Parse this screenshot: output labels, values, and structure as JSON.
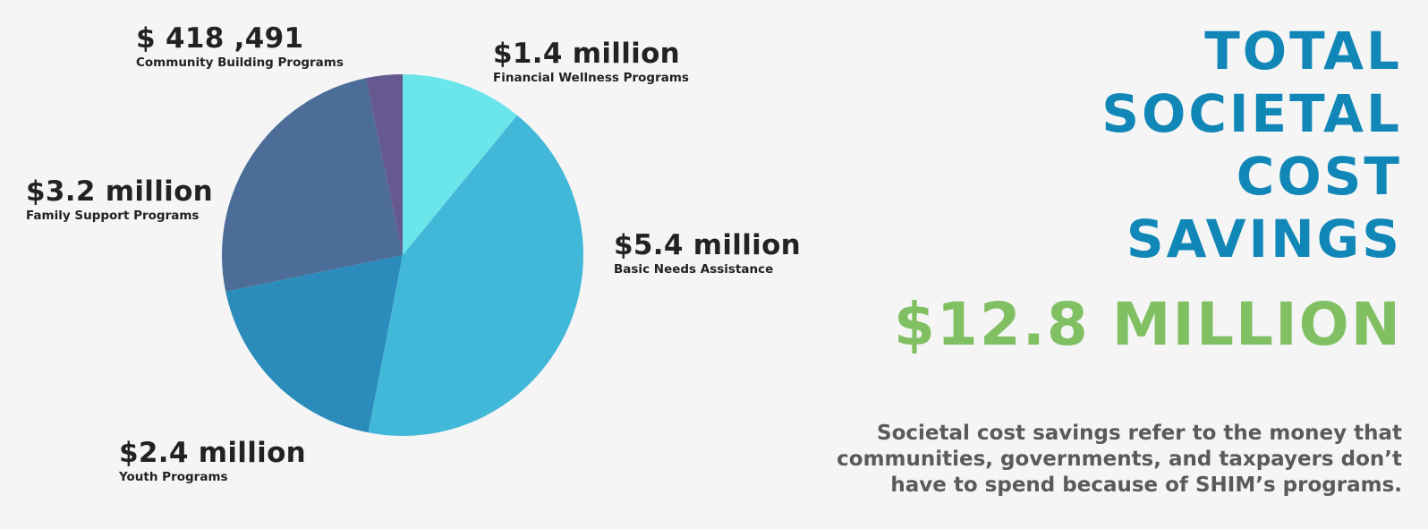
{
  "chart_data": {
    "type": "pie",
    "start": "top",
    "direction": "clockwise",
    "slices": [
      {
        "category": "Financial Wellness Programs",
        "value": 1.4,
        "value_label": "$1.4 million",
        "color": "#6ae5ea"
      },
      {
        "category": "Basic Needs Assistance",
        "value": 5.4,
        "value_label": "$5.4 million",
        "color": "#42b8d9"
      },
      {
        "category": "Youth Programs",
        "value": 2.4,
        "value_label": "$2.4 million",
        "color": "#2b8cbc"
      },
      {
        "category": "Family Support Programs",
        "value": 3.2,
        "value_label": "$3.2 million",
        "color": "#4b6d98"
      },
      {
        "category": "Community Building Programs",
        "value": 0.418491,
        "value_label": "$ 418 ,491",
        "color": "#66598f"
      }
    ]
  },
  "labels": {
    "community": {
      "value": "$ 418 ,491",
      "category": "Community Building Programs"
    },
    "financial": {
      "value": "$1.4 million",
      "category": "Financial Wellness Programs"
    },
    "family": {
      "value": "$3.2 million",
      "category": "Family Support Programs"
    },
    "basic": {
      "value": "$5.4 million",
      "category": "Basic Needs Assistance"
    },
    "youth": {
      "value": "$2.4 million",
      "category": "Youth Programs"
    }
  },
  "title_lines": [
    "TOTAL",
    "SOCIETAL",
    "COST",
    "SAVINGS"
  ],
  "total": "$12.8 MILLION",
  "description_lines": [
    "Societal cost savings refer to the money that",
    "communities, governments, and taxpayers don’t",
    "have to spend because of SHIM’s programs."
  ],
  "colors": {
    "title": "#1187b8",
    "total": "#81bf63",
    "description": "#5a5a5a",
    "label_text": "#222222",
    "background": "#f5f5f5"
  }
}
